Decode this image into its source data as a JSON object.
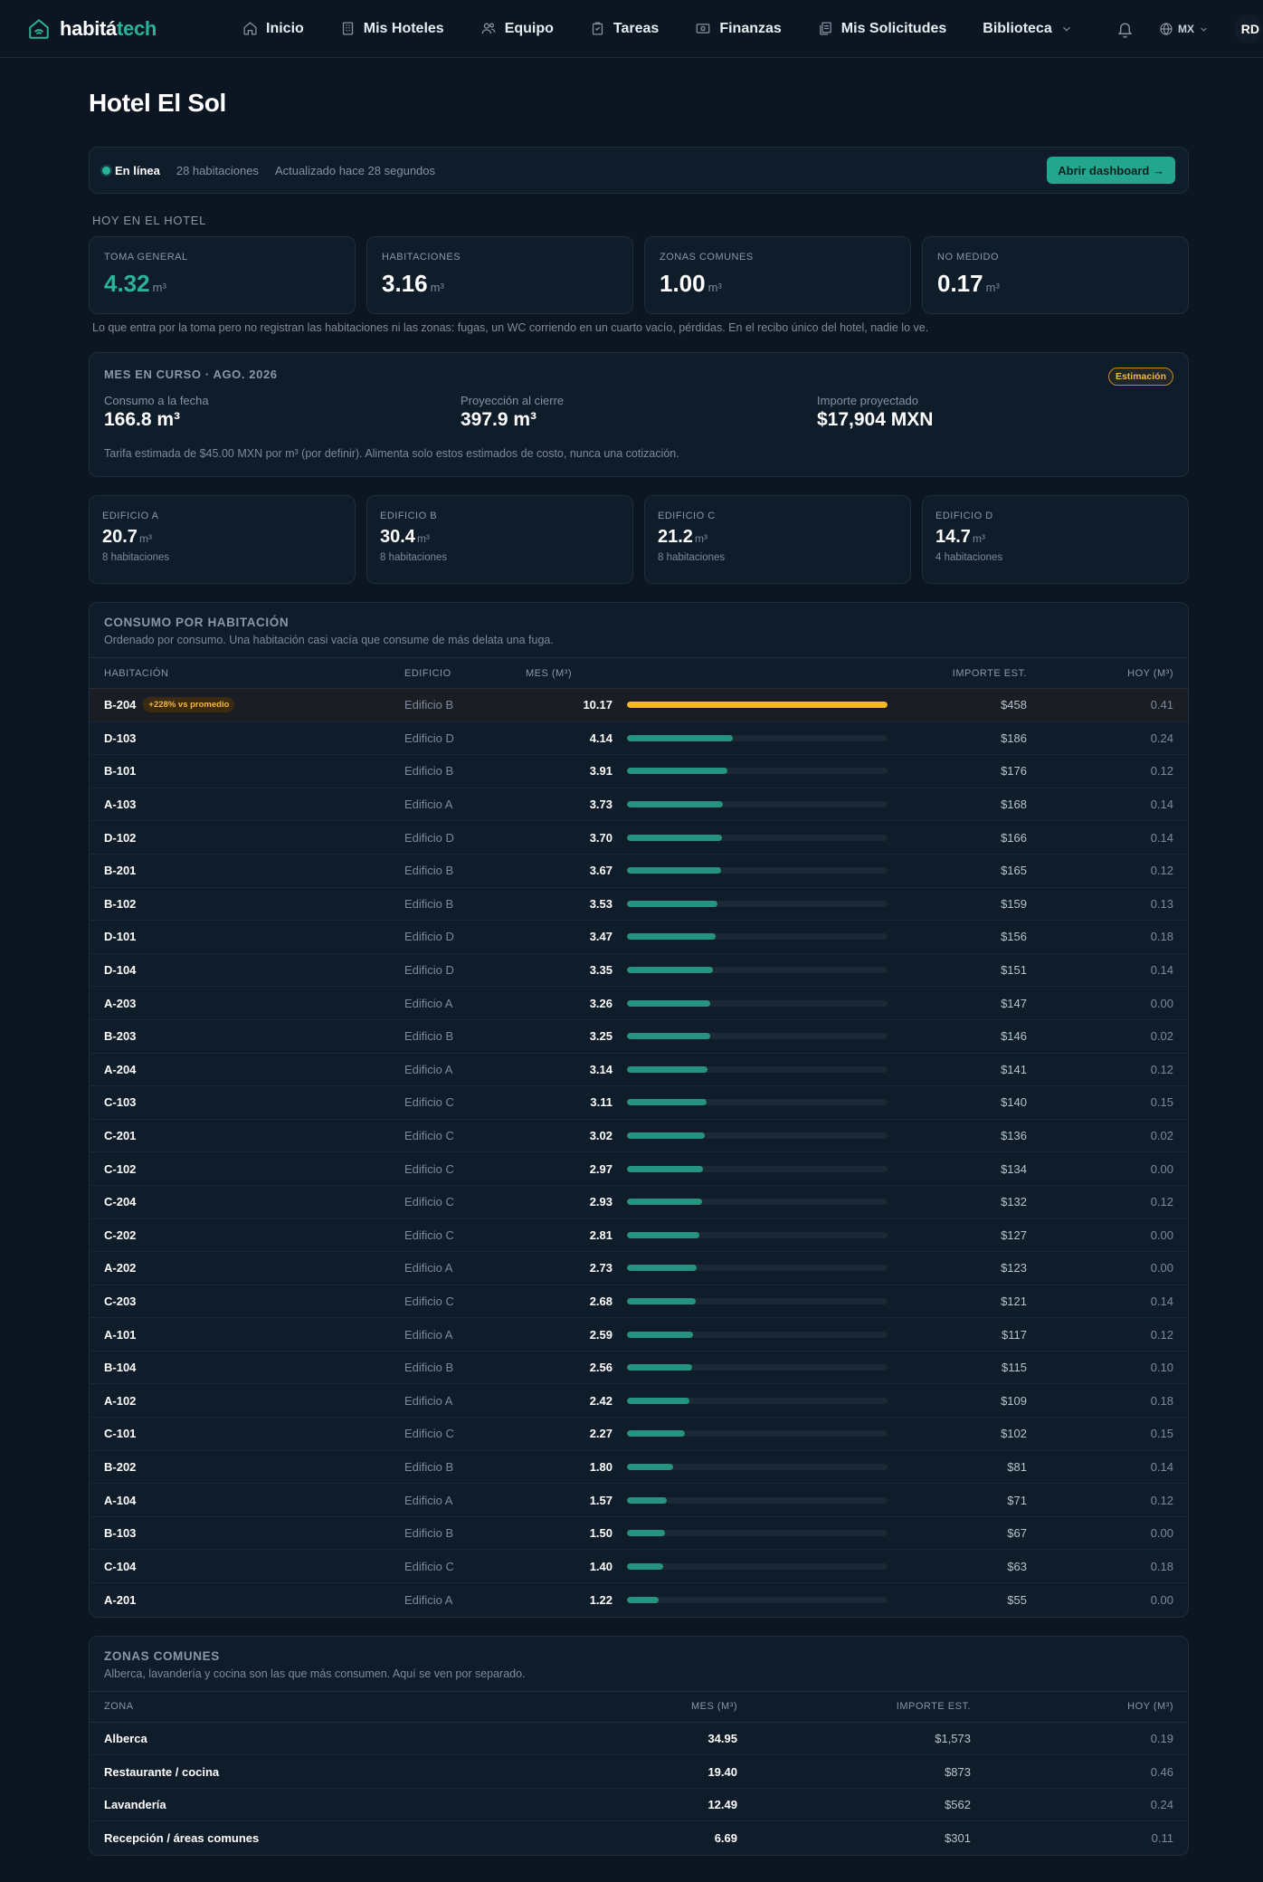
{
  "app": {
    "logo_main": "habitá",
    "logo_accent": "tech"
  },
  "nav": {
    "items": [
      {
        "label": "Inicio",
        "icon": "home-icon"
      },
      {
        "label": "Mis Hoteles",
        "icon": "building-icon"
      },
      {
        "label": "Equipo",
        "icon": "users-icon"
      },
      {
        "label": "Tareas",
        "icon": "clipboard-icon"
      },
      {
        "label": "Finanzas",
        "icon": "money-icon"
      },
      {
        "label": "Mis Solicitudes",
        "icon": "documents-icon"
      }
    ],
    "library": "Biblioteca",
    "locale": "MX",
    "avatar": "RD"
  },
  "page": {
    "title": "Hotel El Sol"
  },
  "status": {
    "online": "En línea",
    "rooms": "28 habitaciones",
    "updated": "Actualizado hace 28 segundos",
    "button": "Abrir dashboard →"
  },
  "today": {
    "label": "HOY EN EL HOTEL",
    "stats": [
      {
        "label": "TOMA GENERAL",
        "value": "4.32",
        "unit": "m³"
      },
      {
        "label": "HABITACIONES",
        "value": "3.16",
        "unit": "m³"
      },
      {
        "label": "ZONAS COMUNES",
        "value": "1.00",
        "unit": "m³"
      },
      {
        "label": "NO MEDIDO",
        "value": "0.17",
        "unit": "m³"
      }
    ],
    "note": "Lo que entra por la toma pero no registran las habitaciones ni las zonas: fugas, un WC corriendo en un cuarto vacío, pérdidas. En el recibo único del hotel, nadie lo ve."
  },
  "month": {
    "title": "MES EN CURSO · AGO. 2026",
    "badge": "Estimación",
    "cols": [
      {
        "label": "Consumo a la fecha",
        "value": "166.8 m³"
      },
      {
        "label": "Proyección al cierre",
        "value": "397.9 m³"
      },
      {
        "label": "Importe proyectado",
        "value": "$17,904 MXN"
      }
    ],
    "note": "Tarifa estimada de $45.00 MXN por m³ (por definir). Alimenta solo estos estimados de costo, nunca una cotización."
  },
  "buildings": [
    {
      "label": "EDIFICIO A",
      "value": "20.7",
      "unit": "m³",
      "sub": "8 habitaciones"
    },
    {
      "label": "EDIFICIO B",
      "value": "30.4",
      "unit": "m³",
      "sub": "8 habitaciones"
    },
    {
      "label": "EDIFICIO C",
      "value": "21.2",
      "unit": "m³",
      "sub": "8 habitaciones"
    },
    {
      "label": "EDIFICIO D",
      "value": "14.7",
      "unit": "m³",
      "sub": "4 habitaciones"
    }
  ],
  "rooms": {
    "title": "CONSUMO POR HABITACIÓN",
    "subtitle": "Ordenado por consumo. Una habitación casi vacía que consume de más delata una fuga.",
    "headers": {
      "room": "HABITACIÓN",
      "building": "EDIFICIO",
      "month": "MES (M³)",
      "amount": "IMPORTE EST.",
      "today": "HOY (M³)"
    },
    "max": 10.17,
    "colors": {
      "normal": "#25937f",
      "warning": "#f5b82b"
    },
    "rows": [
      {
        "room": "B-204",
        "building": "Edificio B",
        "month": "10.17",
        "value": 10.17,
        "amount": "$458",
        "today": "0.41",
        "badge": "+228% vs promedio"
      },
      {
        "room": "D-103",
        "building": "Edificio D",
        "month": "4.14",
        "value": 4.14,
        "amount": "$186",
        "today": "0.24"
      },
      {
        "room": "B-101",
        "building": "Edificio B",
        "month": "3.91",
        "value": 3.91,
        "amount": "$176",
        "today": "0.12"
      },
      {
        "room": "A-103",
        "building": "Edificio A",
        "month": "3.73",
        "value": 3.73,
        "amount": "$168",
        "today": "0.14"
      },
      {
        "room": "D-102",
        "building": "Edificio D",
        "month": "3.70",
        "value": 3.7,
        "amount": "$166",
        "today": "0.14"
      },
      {
        "room": "B-201",
        "building": "Edificio B",
        "month": "3.67",
        "value": 3.67,
        "amount": "$165",
        "today": "0.12"
      },
      {
        "room": "B-102",
        "building": "Edificio B",
        "month": "3.53",
        "value": 3.53,
        "amount": "$159",
        "today": "0.13"
      },
      {
        "room": "D-101",
        "building": "Edificio D",
        "month": "3.47",
        "value": 3.47,
        "amount": "$156",
        "today": "0.18"
      },
      {
        "room": "D-104",
        "building": "Edificio D",
        "month": "3.35",
        "value": 3.35,
        "amount": "$151",
        "today": "0.14"
      },
      {
        "room": "A-203",
        "building": "Edificio A",
        "month": "3.26",
        "value": 3.26,
        "amount": "$147",
        "today": "0.00"
      },
      {
        "room": "B-203",
        "building": "Edificio B",
        "month": "3.25",
        "value": 3.25,
        "amount": "$146",
        "today": "0.02"
      },
      {
        "room": "A-204",
        "building": "Edificio A",
        "month": "3.14",
        "value": 3.14,
        "amount": "$141",
        "today": "0.12"
      },
      {
        "room": "C-103",
        "building": "Edificio C",
        "month": "3.11",
        "value": 3.11,
        "amount": "$140",
        "today": "0.15"
      },
      {
        "room": "C-201",
        "building": "Edificio C",
        "month": "3.02",
        "value": 3.02,
        "amount": "$136",
        "today": "0.02"
      },
      {
        "room": "C-102",
        "building": "Edificio C",
        "month": "2.97",
        "value": 2.97,
        "amount": "$134",
        "today": "0.00"
      },
      {
        "room": "C-204",
        "building": "Edificio C",
        "month": "2.93",
        "value": 2.93,
        "amount": "$132",
        "today": "0.12"
      },
      {
        "room": "C-202",
        "building": "Edificio C",
        "month": "2.81",
        "value": 2.81,
        "amount": "$127",
        "today": "0.00"
      },
      {
        "room": "A-202",
        "building": "Edificio A",
        "month": "2.73",
        "value": 2.73,
        "amount": "$123",
        "today": "0.00"
      },
      {
        "room": "C-203",
        "building": "Edificio C",
        "month": "2.68",
        "value": 2.68,
        "amount": "$121",
        "today": "0.14"
      },
      {
        "room": "A-101",
        "building": "Edificio A",
        "month": "2.59",
        "value": 2.59,
        "amount": "$117",
        "today": "0.12"
      },
      {
        "room": "B-104",
        "building": "Edificio B",
        "month": "2.56",
        "value": 2.56,
        "amount": "$115",
        "today": "0.10"
      },
      {
        "room": "A-102",
        "building": "Edificio A",
        "month": "2.42",
        "value": 2.42,
        "amount": "$109",
        "today": "0.18"
      },
      {
        "room": "C-101",
        "building": "Edificio C",
        "month": "2.27",
        "value": 2.27,
        "amount": "$102",
        "today": "0.15"
      },
      {
        "room": "B-202",
        "building": "Edificio B",
        "month": "1.80",
        "value": 1.8,
        "amount": "$81",
        "today": "0.14"
      },
      {
        "room": "A-104",
        "building": "Edificio A",
        "month": "1.57",
        "value": 1.57,
        "amount": "$71",
        "today": "0.12"
      },
      {
        "room": "B-103",
        "building": "Edificio B",
        "month": "1.50",
        "value": 1.5,
        "amount": "$67",
        "today": "0.00"
      },
      {
        "room": "C-104",
        "building": "Edificio C",
        "month": "1.40",
        "value": 1.4,
        "amount": "$63",
        "today": "0.18"
      },
      {
        "room": "A-201",
        "building": "Edificio A",
        "month": "1.22",
        "value": 1.22,
        "amount": "$55",
        "today": "0.00"
      }
    ]
  },
  "zones": {
    "title": "ZONAS COMUNES",
    "subtitle": "Alberca, lavandería y cocina son las que más consumen. Aquí se ven por separado.",
    "headers": {
      "zone": "ZONA",
      "month": "MES (M³)",
      "amount": "IMPORTE EST.",
      "today": "HOY (M³)"
    },
    "rows": [
      {
        "zone": "Alberca",
        "month": "34.95",
        "amount": "$1,573",
        "today": "0.19"
      },
      {
        "zone": "Restaurante / cocina",
        "month": "19.40",
        "amount": "$873",
        "today": "0.46"
      },
      {
        "zone": "Lavandería",
        "month": "12.49",
        "amount": "$562",
        "today": "0.24"
      },
      {
        "zone": "Recepción / áreas comunes",
        "month": "6.69",
        "amount": "$301",
        "today": "0.11"
      }
    ]
  }
}
